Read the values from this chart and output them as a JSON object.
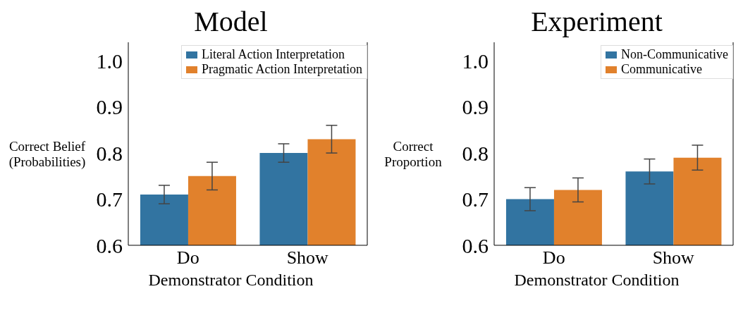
{
  "chart_data": [
    {
      "type": "bar",
      "title": "Model",
      "xlabel": "Demonstrator Condition",
      "ylabel": "Correct Belief (Probabilities)",
      "categories": [
        "Do",
        "Show"
      ],
      "series": [
        {
          "name": "Literal Action Interpretation",
          "color": "#3274a1",
          "values": [
            0.71,
            0.8
          ],
          "errors": [
            0.02,
            0.02
          ]
        },
        {
          "name": "Pragmatic Action Interpretation",
          "color": "#e1812c",
          "values": [
            0.75,
            0.83
          ],
          "errors": [
            0.03,
            0.03
          ]
        }
      ],
      "ylim": [
        0.6,
        1.04
      ],
      "yticks": [
        {
          "value": 0.6,
          "label": "0.6"
        },
        {
          "value": 0.7,
          "label": "0.7"
        },
        {
          "value": 0.8,
          "label": "0.8"
        },
        {
          "value": 0.9,
          "label": "0.9"
        },
        {
          "value": 1.0,
          "label": "1.0"
        }
      ],
      "legend": "top right"
    },
    {
      "type": "bar",
      "title": "Experiment",
      "xlabel": "Demonstrator Condition",
      "ylabel": "Correct Proportion",
      "categories": [
        "Do",
        "Show"
      ],
      "series": [
        {
          "name": "Non-Communicative",
          "color": "#3274a1",
          "values": [
            0.7,
            0.76
          ],
          "errors": [
            0.025,
            0.027
          ]
        },
        {
          "name": "Communicative",
          "color": "#e1812c",
          "values": [
            0.72,
            0.79
          ],
          "errors": [
            0.026,
            0.027
          ]
        }
      ],
      "ylim": [
        0.6,
        1.04
      ],
      "yticks": [
        {
          "value": 0.6,
          "label": "0.6"
        },
        {
          "value": 0.7,
          "label": "0.7"
        },
        {
          "value": 0.8,
          "label": "0.8"
        },
        {
          "value": 0.9,
          "label": "0.9"
        },
        {
          "value": 1.0,
          "label": "1.0"
        }
      ],
      "legend": "top right"
    }
  ]
}
